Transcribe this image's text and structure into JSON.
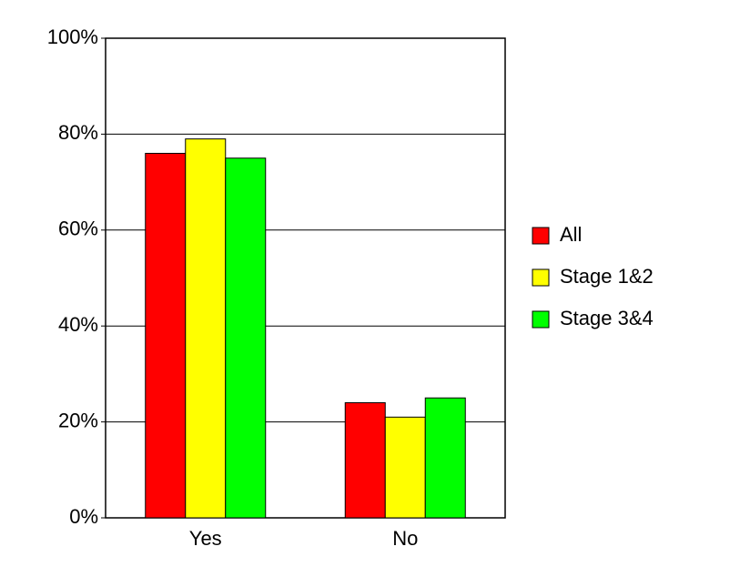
{
  "chart_data": {
    "type": "bar",
    "categories": [
      "Yes",
      "No"
    ],
    "series": [
      {
        "name": "All",
        "color": "#ff0000",
        "values": [
          76,
          24
        ]
      },
      {
        "name": "Stage 1&2",
        "color": "#ffff00",
        "values": [
          79,
          21
        ]
      },
      {
        "name": "Stage 3&4",
        "color": "#00ff00",
        "values": [
          75,
          25
        ]
      }
    ],
    "ylim": [
      0,
      100
    ],
    "yticks": [
      {
        "value": 0,
        "label": "0%"
      },
      {
        "value": 20,
        "label": "20%"
      },
      {
        "value": 40,
        "label": "40%"
      },
      {
        "value": 60,
        "label": "60%"
      },
      {
        "value": 80,
        "label": "80%"
      },
      {
        "value": 100,
        "label": "100%"
      }
    ],
    "grid": true,
    "legend": "right"
  }
}
